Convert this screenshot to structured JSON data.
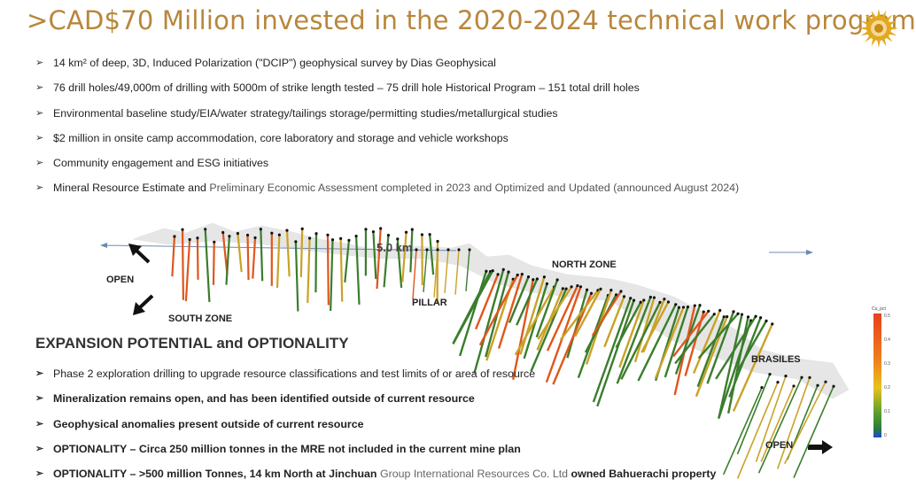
{
  "title": ">CAD$70 Million invested in the 2020-2024 technical work program",
  "bullets": [
    {
      "text": "14 km² of deep, 3D, Induced Polarization (\"DCIP\") geophysical survey by Dias Geophysical"
    },
    {
      "text": "76 drill holes/49,000m of drilling with 5000m of strike length tested – 75 drill hole Historical Program – 151 total drill holes"
    },
    {
      "text": "Environmental baseline study/EIA/water strategy/tailings storage/permitting studies/metallurgical studies"
    },
    {
      "text": "$2 million in onsite camp accommodation, core laboratory and storage and vehicle workshops"
    },
    {
      "text": "Community engagement and ESG initiatives"
    },
    {
      "text_a": "Mineral Resource Estimate and ",
      "text_b": "Preliminary Economic Assessment",
      "text_c": " completed in 2023 and Optimized and Updated (announced August 2024)"
    }
  ],
  "section": {
    "title": "EXPANSION POTENTIAL and OPTIONALITY",
    "items": [
      {
        "a": "Phase 2 exploration drilling to upgrade resource classifications and test limits of or area of resource",
        "b": ""
      },
      {
        "a": "Mineralization remains open, and has been  identified outside of current resource",
        "b": ""
      },
      {
        "a": "Geophysical anomalies present outside of current resource",
        "b": ""
      },
      {
        "a": "OPTIONALITY – Circa 250 million tonnes in the MRE not included in the current mine plan",
        "b": ""
      },
      {
        "a": "OPTIONALITY – >500 million Tonnes, 14 km North at Jinchuan ",
        "b": "Group International Resources Co. Ltd",
        "c": " owned Bahuerachi property"
      }
    ]
  },
  "map_labels": {
    "distance": "5.0 km",
    "open_left": "OPEN",
    "south_zone": "SOUTH ZONE",
    "pillar": "PILLAR",
    "north_zone": "NORTH ZONE",
    "brasiles": "BRASILES",
    "open_right": "OPEN"
  },
  "legend": {
    "title": "Cu_pct",
    "ticks": [
      "0.5",
      "0.4",
      "0.3",
      "0.2",
      "0.1",
      "0"
    ]
  },
  "colors": {
    "title": "#b8863b",
    "hole_low": "#3a7d2c",
    "hole_mid": "#c9a227",
    "hole_high": "#e0561c"
  }
}
